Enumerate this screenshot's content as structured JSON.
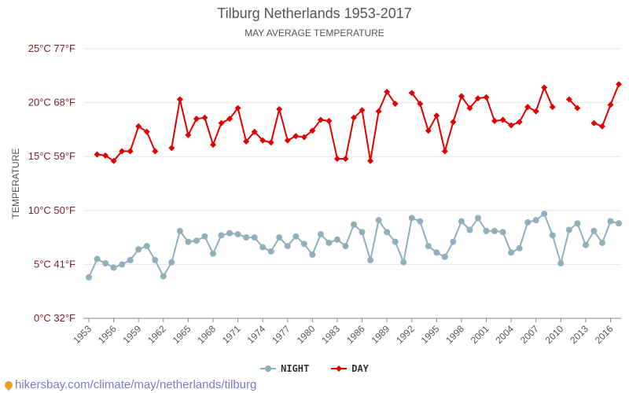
{
  "chart_data": {
    "type": "line",
    "title": "Tilburg Netherlands 1953-2017",
    "subtitle": "MAY AVERAGE TEMPERATURE",
    "xlabel": "",
    "ylabel": "TEMPERATURE",
    "xlim": [
      1953,
      2017
    ],
    "ylim": [
      0,
      25
    ],
    "yticks": [
      {
        "value": 0,
        "label": "0°C 32°F"
      },
      {
        "value": 5,
        "label": "5°C 41°F"
      },
      {
        "value": 10,
        "label": "10°C 50°F"
      },
      {
        "value": 15,
        "label": "15°C 59°F"
      },
      {
        "value": 20,
        "label": "20°C 68°F"
      },
      {
        "value": 25,
        "label": "25°C 77°F"
      }
    ],
    "xticks": [
      1953,
      1956,
      1959,
      1962,
      1965,
      1968,
      1971,
      1974,
      1977,
      1980,
      1983,
      1986,
      1989,
      1992,
      1995,
      1998,
      2001,
      2004,
      2007,
      2010,
      2013,
      2016
    ],
    "grid": true,
    "legend": "bottom-center",
    "x": [
      1953,
      1954,
      1955,
      1956,
      1957,
      1958,
      1959,
      1960,
      1961,
      1962,
      1963,
      1964,
      1965,
      1966,
      1967,
      1968,
      1969,
      1970,
      1971,
      1972,
      1973,
      1974,
      1975,
      1976,
      1977,
      1978,
      1979,
      1980,
      1981,
      1982,
      1983,
      1984,
      1985,
      1986,
      1987,
      1988,
      1989,
      1990,
      1991,
      1992,
      1993,
      1994,
      1995,
      1996,
      1997,
      1998,
      1999,
      2000,
      2001,
      2002,
      2003,
      2004,
      2005,
      2006,
      2007,
      2008,
      2009,
      2010,
      2011,
      2012,
      2013,
      2014,
      2015,
      2016,
      2017
    ],
    "series": [
      {
        "name": "NIGHT",
        "color": "#90b0bb",
        "marker": "circle",
        "values": [
          3.8,
          5.5,
          5.1,
          4.7,
          5.0,
          5.4,
          6.4,
          6.7,
          5.4,
          3.9,
          5.2,
          8.1,
          7.1,
          7.2,
          7.6,
          6.0,
          7.7,
          7.9,
          7.8,
          7.5,
          7.5,
          6.6,
          6.2,
          7.5,
          6.7,
          7.6,
          6.9,
          5.9,
          7.8,
          7.0,
          7.3,
          6.7,
          8.7,
          8.0,
          5.4,
          9.1,
          8.0,
          7.1,
          5.2,
          9.3,
          9.0,
          6.7,
          6.1,
          5.7,
          7.1,
          9.0,
          8.2,
          9.3,
          8.1,
          8.1,
          8.0,
          6.1,
          6.5,
          8.9,
          9.1,
          9.7,
          7.7,
          5.1,
          8.2,
          8.8,
          6.8,
          8.1,
          7.0,
          9.0,
          8.8
        ]
      },
      {
        "name": "DAY",
        "color": "#e00000",
        "marker": "diamond",
        "values": [
          null,
          15.2,
          15.1,
          14.6,
          15.5,
          15.5,
          17.8,
          17.3,
          15.5,
          null,
          15.8,
          20.3,
          17.0,
          18.5,
          18.6,
          16.1,
          18.1,
          18.5,
          19.5,
          16.4,
          17.3,
          16.5,
          16.3,
          19.4,
          16.5,
          16.9,
          16.8,
          17.4,
          18.4,
          18.3,
          14.8,
          14.8,
          18.6,
          19.3,
          14.6,
          19.2,
          21.0,
          19.9,
          null,
          20.9,
          19.9,
          17.4,
          18.8,
          15.5,
          18.2,
          20.6,
          19.5,
          20.4,
          20.5,
          18.3,
          18.4,
          17.9,
          18.2,
          19.6,
          19.2,
          21.4,
          19.6,
          null,
          20.3,
          19.5,
          null,
          18.1,
          17.8,
          19.8,
          21.7
        ]
      }
    ]
  },
  "legend": {
    "items": [
      {
        "label": "NIGHT",
        "color": "#90b0bb"
      },
      {
        "label": "DAY",
        "color": "#e00000"
      }
    ]
  },
  "footer": {
    "text": "hikersbay.com/climate/may/netherlands/tilburg"
  }
}
